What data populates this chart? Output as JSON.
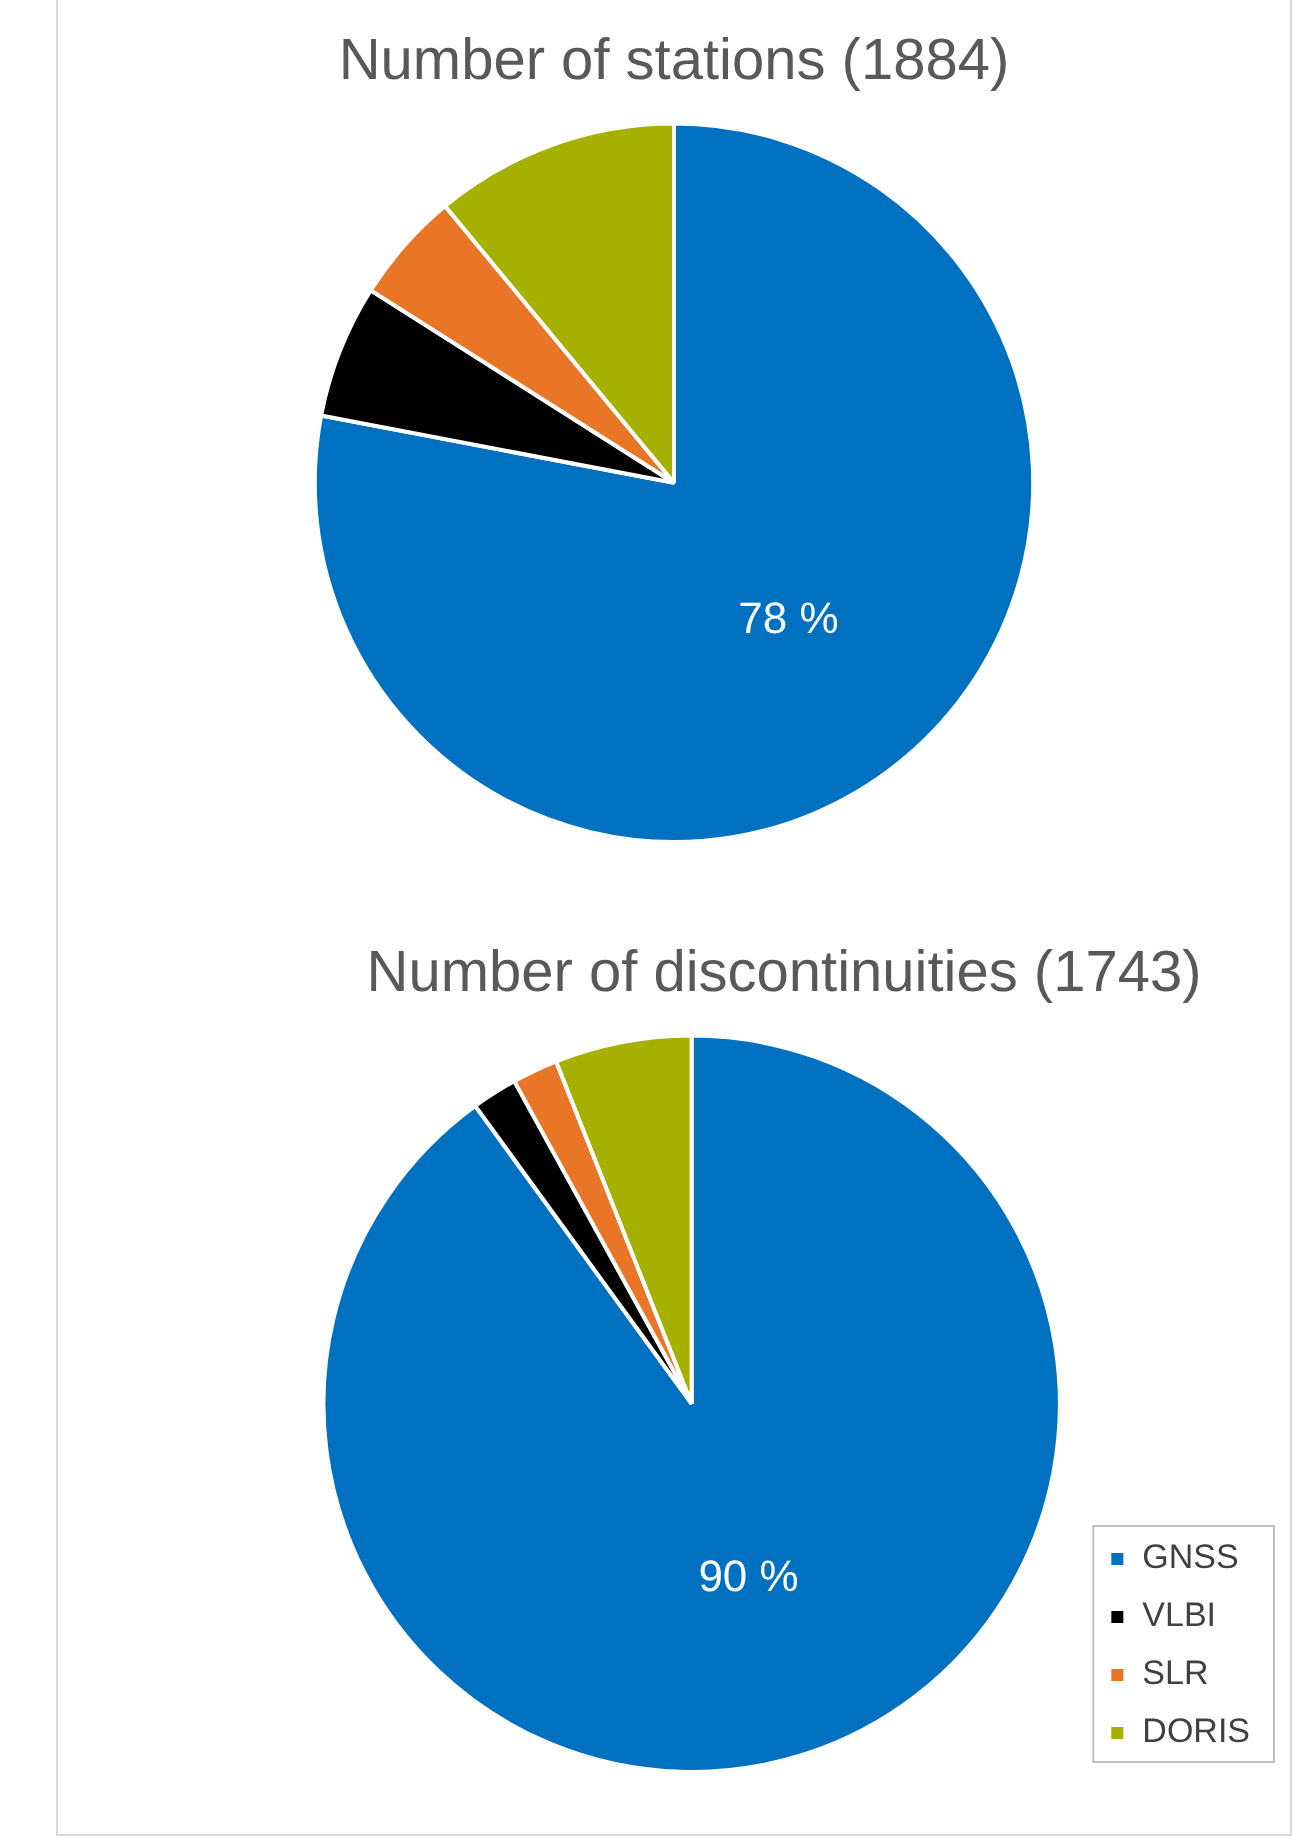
{
  "chart_data": [
    {
      "type": "pie",
      "title": "Number of stations (1884)",
      "categories": [
        null,
        null,
        null,
        null
      ],
      "values": [
        78,
        6,
        5,
        11
      ],
      "colors": [
        "#0070c0",
        "#000000",
        "#e97627",
        "#a5b000"
      ],
      "value_labels": [
        "78 %",
        null,
        null,
        null
      ],
      "legend": false
    },
    {
      "type": "pie",
      "title": "Number of discontinuities (1743)",
      "categories": [
        "GNSS",
        "VLBI",
        "SLR",
        "DORIS"
      ],
      "values": [
        90,
        2,
        2,
        6
      ],
      "colors": [
        "#0070c0",
        "#000000",
        "#e97627",
        "#a5b000"
      ],
      "value_labels": [
        "90 %",
        null,
        null,
        null
      ],
      "legend": "bottom right"
    }
  ]
}
